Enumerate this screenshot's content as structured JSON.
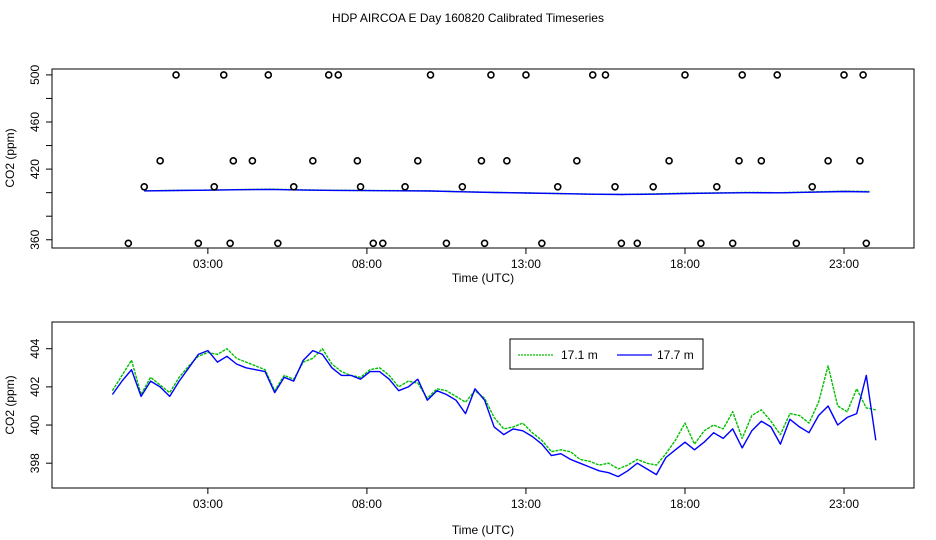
{
  "figure_title": "HDP AIRCOA E  Day 160820  Calibrated Timeseries",
  "colors": {
    "series_17_1": "#00c000",
    "series_17_7": "#0000ff",
    "markers": "#000000"
  },
  "chart_data": [
    {
      "type": "line",
      "title": "",
      "xlabel": "Time (UTC)",
      "ylabel": "CO2 (ppm)",
      "xlim": [
        -1.9,
        25.2
      ],
      "ylim": [
        353,
        505
      ],
      "x_ticks": [
        3,
        8,
        13,
        18,
        23
      ],
      "x_tick_labels": [
        "03:00",
        "08:00",
        "13:00",
        "18:00",
        "23:00"
      ],
      "y_ticks": [
        360,
        380,
        400,
        420,
        440,
        460,
        480,
        500
      ],
      "y_tick_labels": [
        "360",
        "",
        "",
        "420",
        "",
        "460",
        "",
        "500"
      ],
      "series": [
        {
          "name": "17.1 m",
          "color": "#00c000",
          "x": [
            1,
            2,
            3,
            4,
            5,
            6,
            7,
            8,
            9,
            10,
            11,
            12,
            13,
            14,
            15,
            16,
            17,
            18,
            19,
            20,
            21,
            22,
            23,
            23.8
          ],
          "values": [
            401.6,
            401.9,
            402.2,
            402.6,
            402.9,
            402.3,
            402.0,
            401.8,
            401.7,
            401.5,
            400.8,
            400.2,
            399.8,
            399.3,
            398.8,
            398.5,
            398.9,
            399.5,
            399.8,
            400.2,
            400.0,
            400.6,
            401.2,
            401.0
          ]
        },
        {
          "name": "17.7 m",
          "color": "#0000ff",
          "x": [
            1,
            2,
            3,
            4,
            5,
            6,
            7,
            8,
            9,
            10,
            11,
            12,
            13,
            14,
            15,
            16,
            17,
            18,
            19,
            20,
            21,
            22,
            23,
            23.8
          ],
          "values": [
            401.5,
            401.8,
            402.1,
            402.5,
            402.8,
            402.2,
            401.9,
            401.7,
            401.6,
            401.4,
            400.7,
            400.1,
            399.7,
            399.2,
            398.7,
            398.4,
            398.7,
            399.3,
            399.6,
            400.0,
            399.9,
            400.4,
            401.0,
            400.6
          ]
        }
      ],
      "markers": {
        "style": "open-circle",
        "x": [
          0.5,
          1.0,
          1.5,
          2.0,
          2.7,
          3.2,
          3.5,
          3.7,
          3.8,
          4.4,
          4.9,
          5.2,
          5.7,
          6.3,
          6.8,
          7.1,
          7.7,
          7.8,
          8.2,
          8.5,
          9.2,
          9.6,
          10.0,
          10.5,
          11.0,
          11.6,
          11.7,
          11.9,
          12.4,
          13.0,
          13.5,
          14.0,
          14.6,
          15.1,
          15.5,
          15.8,
          16.0,
          16.5,
          17.0,
          17.5,
          18.0,
          18.5,
          19.0,
          19.5,
          19.7,
          19.8,
          20.4,
          20.9,
          21.5,
          22.0,
          22.5,
          23.0,
          23.5,
          23.6,
          23.7
        ],
        "y": [
          357,
          405,
          427,
          500,
          357,
          405,
          500,
          357,
          427,
          427,
          500,
          357,
          405,
          427,
          500,
          500,
          427,
          405,
          357,
          357,
          405,
          427,
          500,
          357,
          405,
          427,
          357,
          500,
          427,
          500,
          357,
          405,
          427,
          500,
          500,
          405,
          357,
          357,
          405,
          427,
          500,
          357,
          405,
          357,
          427,
          500,
          427,
          500,
          357,
          405,
          427,
          500,
          427,
          500,
          357
        ]
      }
    },
    {
      "type": "line",
      "title": "",
      "xlabel": "Time (UTC)",
      "ylabel": "CO2 (ppm)",
      "xlim": [
        -1.9,
        25.2
      ],
      "ylim": [
        396.7,
        405.4
      ],
      "x_ticks": [
        3,
        8,
        13,
        18,
        23
      ],
      "x_tick_labels": [
        "03:00",
        "08:00",
        "13:00",
        "18:00",
        "23:00"
      ],
      "y_ticks": [
        398,
        400,
        402,
        404
      ],
      "y_tick_labels": [
        "398",
        "400",
        "402",
        "404"
      ],
      "legend": {
        "position": "top-right",
        "entries": [
          "17.1 m",
          "17.7 m"
        ]
      },
      "series": [
        {
          "name": "17.1 m",
          "color": "#00c000",
          "x": [
            0.0,
            0.3,
            0.6,
            0.9,
            1.2,
            1.5,
            1.8,
            2.1,
            2.4,
            2.7,
            3.0,
            3.3,
            3.6,
            3.9,
            4.2,
            4.5,
            4.8,
            5.1,
            5.4,
            5.7,
            6.0,
            6.3,
            6.6,
            6.9,
            7.2,
            7.5,
            7.8,
            8.1,
            8.4,
            8.7,
            9.0,
            9.3,
            9.6,
            9.9,
            10.2,
            10.5,
            10.8,
            11.1,
            11.4,
            11.7,
            12.0,
            12.3,
            12.6,
            12.9,
            13.2,
            13.5,
            13.8,
            14.1,
            14.4,
            14.7,
            15.0,
            15.3,
            15.6,
            15.9,
            16.2,
            16.5,
            16.8,
            17.1,
            17.4,
            17.7,
            18.0,
            18.3,
            18.6,
            18.9,
            19.2,
            19.5,
            19.8,
            20.1,
            20.4,
            20.7,
            21.0,
            21.3,
            21.6,
            21.9,
            22.2,
            22.5,
            22.8,
            23.1,
            23.4,
            23.7,
            24.0
          ],
          "values": [
            401.8,
            402.6,
            403.4,
            401.6,
            402.5,
            402.1,
            401.7,
            402.5,
            403.1,
            403.6,
            403.8,
            403.7,
            404.0,
            403.5,
            403.3,
            403.1,
            402.9,
            401.8,
            402.6,
            402.4,
            403.3,
            403.5,
            404.0,
            403.2,
            402.8,
            402.6,
            402.5,
            402.9,
            403.0,
            402.6,
            402.0,
            402.3,
            402.2,
            401.4,
            401.9,
            401.8,
            401.5,
            401.2,
            401.8,
            401.4,
            400.4,
            399.8,
            399.9,
            400.1,
            399.6,
            399.2,
            398.6,
            398.7,
            398.6,
            398.2,
            398.1,
            397.9,
            398.0,
            397.7,
            397.9,
            398.2,
            398.0,
            397.9,
            398.5,
            399.2,
            400.1,
            399.0,
            399.7,
            400.0,
            399.8,
            400.7,
            399.3,
            400.5,
            400.8,
            400.2,
            399.5,
            400.6,
            400.5,
            400.1,
            401.2,
            403.1,
            401.0,
            400.7,
            401.9,
            400.9,
            400.8
          ]
        },
        {
          "name": "17.7 m",
          "color": "#0000ff",
          "x": [
            0.0,
            0.3,
            0.6,
            0.9,
            1.2,
            1.5,
            1.8,
            2.1,
            2.4,
            2.7,
            3.0,
            3.3,
            3.6,
            3.9,
            4.2,
            4.5,
            4.8,
            5.1,
            5.4,
            5.7,
            6.0,
            6.3,
            6.6,
            6.9,
            7.2,
            7.5,
            7.8,
            8.1,
            8.4,
            8.7,
            9.0,
            9.3,
            9.6,
            9.9,
            10.2,
            10.5,
            10.8,
            11.1,
            11.4,
            11.7,
            12.0,
            12.3,
            12.6,
            12.9,
            13.2,
            13.5,
            13.8,
            14.1,
            14.4,
            14.7,
            15.0,
            15.3,
            15.6,
            15.9,
            16.2,
            16.5,
            16.8,
            17.1,
            17.4,
            17.7,
            18.0,
            18.3,
            18.6,
            18.9,
            19.2,
            19.5,
            19.8,
            20.1,
            20.4,
            20.7,
            21.0,
            21.3,
            21.6,
            21.9,
            22.2,
            22.5,
            22.8,
            23.1,
            23.4,
            23.7,
            24.0
          ],
          "values": [
            401.6,
            402.3,
            402.9,
            401.5,
            402.3,
            402.0,
            401.5,
            402.3,
            403.0,
            403.7,
            403.9,
            403.3,
            403.6,
            403.2,
            403.0,
            402.9,
            402.8,
            401.7,
            402.5,
            402.3,
            403.4,
            403.9,
            403.7,
            403.0,
            402.6,
            402.6,
            402.4,
            402.8,
            402.8,
            402.4,
            401.8,
            402.0,
            402.4,
            401.3,
            401.8,
            401.6,
            401.3,
            400.6,
            401.9,
            401.3,
            399.9,
            399.5,
            399.8,
            399.7,
            399.4,
            399.0,
            398.4,
            398.5,
            398.2,
            398.0,
            397.8,
            397.6,
            397.5,
            397.3,
            397.6,
            398.0,
            397.7,
            397.4,
            398.3,
            398.7,
            399.1,
            398.7,
            399.1,
            399.6,
            399.3,
            399.8,
            398.8,
            399.7,
            400.2,
            399.9,
            399.0,
            400.3,
            399.9,
            399.6,
            400.5,
            401.0,
            400.0,
            400.4,
            400.6,
            402.6,
            399.2
          ]
        }
      ]
    }
  ]
}
